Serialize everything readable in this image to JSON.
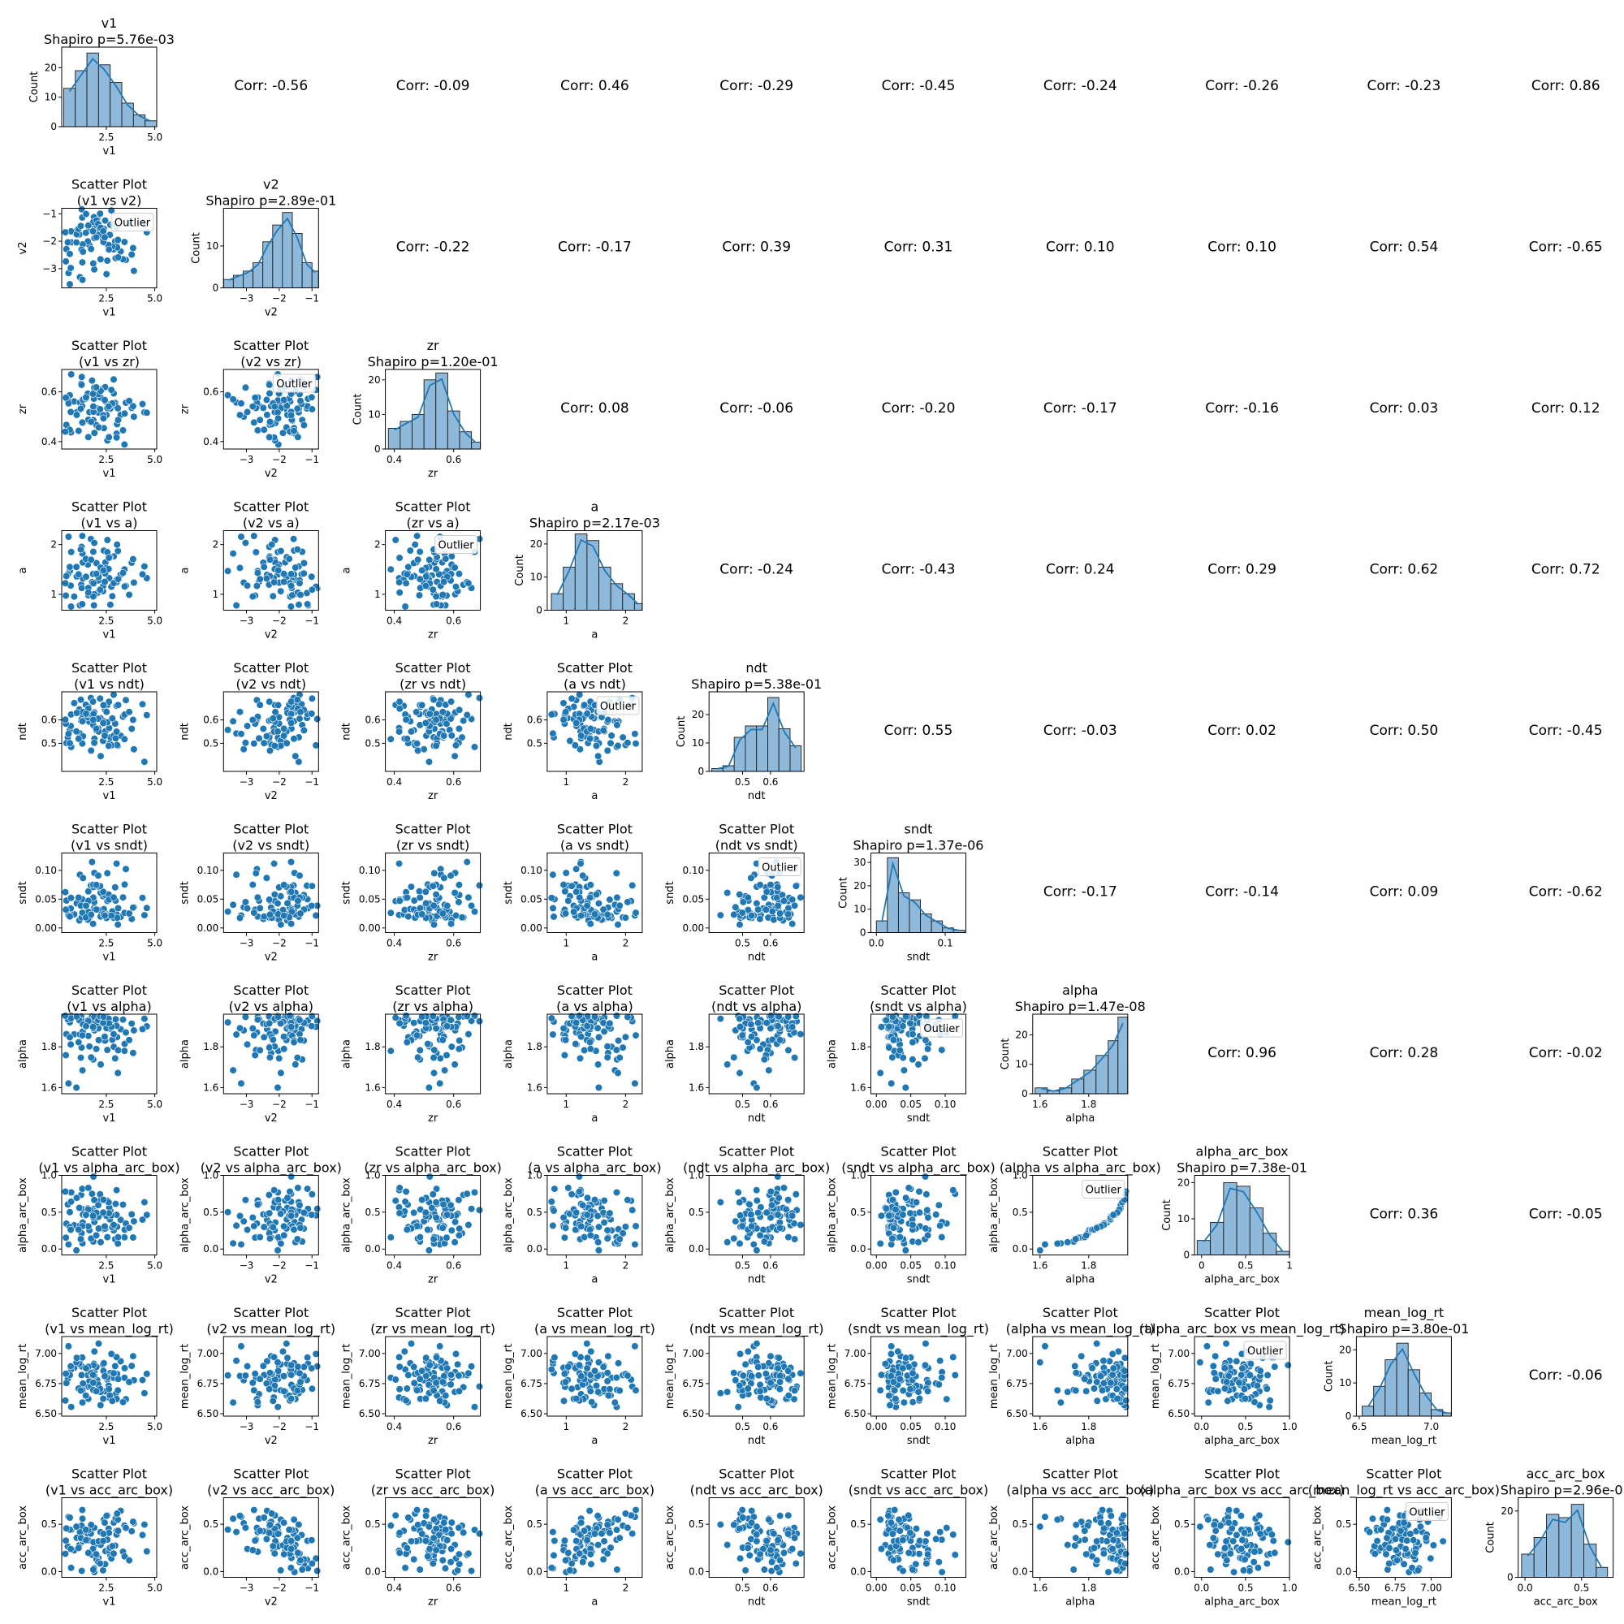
{
  "chart_data": {
    "type": "pair-grid",
    "variables": [
      "v1",
      "v2",
      "zr",
      "a",
      "ndt",
      "sndt",
      "alpha",
      "alpha_arc_box",
      "mean_log_rt",
      "acc_arc_box"
    ],
    "ranges": {
      "v1": [
        0.2,
        5.1
      ],
      "v2": [
        -3.7,
        -0.8
      ],
      "zr": [
        0.37,
        0.69
      ],
      "a": [
        0.68,
        2.28
      ],
      "ndt": [
        0.38,
        0.72
      ],
      "sndt": [
        -0.008,
        0.13
      ],
      "alpha": [
        1.57,
        1.96
      ],
      "alpha_arc_box": [
        -0.08,
        1.0
      ],
      "mean_log_rt": [
        6.48,
        7.14
      ],
      "acc_arc_box": [
        -0.06,
        0.78
      ]
    },
    "ticks": {
      "v1": {
        "values": [
          2.5,
          5.0
        ],
        "labels": [
          "2.5",
          "5.0"
        ]
      },
      "v2": {
        "values": [
          -3,
          -2,
          -1
        ],
        "labels": [
          "−3",
          "−2",
          "−1"
        ]
      },
      "zr": {
        "values": [
          0.4,
          0.6
        ],
        "labels": [
          "0.4",
          "0.6"
        ]
      },
      "a": {
        "values": [
          1,
          2
        ],
        "labels": [
          "1",
          "2"
        ]
      },
      "ndt": {
        "values": [
          0.5,
          0.6
        ],
        "labels": [
          "0.5",
          "0.6"
        ]
      },
      "sndt": {
        "values": [
          0.0,
          0.05,
          0.1
        ],
        "labels": [
          "0.00",
          "0.05",
          "0.10"
        ]
      },
      "alpha": {
        "values": [
          1.6,
          1.8
        ],
        "labels": [
          "1.6",
          "1.8"
        ]
      },
      "alpha_arc_box": {
        "values": [
          0.0,
          0.5,
          1.0
        ],
        "labels": [
          "0.0",
          "0.5",
          "1.0"
        ]
      },
      "mean_log_rt": {
        "values": [
          6.5,
          6.75,
          7.0
        ],
        "labels": [
          "6.50",
          "6.75",
          "7.00"
        ]
      },
      "acc_arc_box": {
        "values": [
          0.0,
          0.5
        ],
        "labels": [
          "0.0",
          "0.5"
        ]
      }
    },
    "hist_xticks": {
      "v1": {
        "values": [
          2.5,
          5.0
        ],
        "labels": [
          "2.5",
          "5.0"
        ]
      },
      "v2": {
        "values": [
          -3,
          -2,
          -1
        ],
        "labels": [
          "−3",
          "−2",
          "−1"
        ]
      },
      "zr": {
        "values": [
          0.4,
          0.6
        ],
        "labels": [
          "0.4",
          "0.6"
        ]
      },
      "a": {
        "values": [
          1,
          2
        ],
        "labels": [
          "1",
          "2"
        ]
      },
      "ndt": {
        "values": [
          0.5,
          0.6
        ],
        "labels": [
          "0.5",
          "0.6"
        ]
      },
      "sndt": {
        "values": [
          0.0,
          0.1
        ],
        "labels": [
          "0.0",
          "0.1"
        ]
      },
      "alpha": {
        "values": [
          1.6,
          1.8
        ],
        "labels": [
          "1.6",
          "1.8"
        ]
      },
      "alpha_arc_box": {
        "values": [
          0,
          0.5,
          1
        ],
        "labels": [
          "0",
          "0.5",
          "1"
        ]
      },
      "mean_log_rt": {
        "values": [
          6.5,
          7.0
        ],
        "labels": [
          "6.5",
          "7.0"
        ]
      },
      "acc_arc_box": {
        "values": [
          0.0,
          0.5
        ],
        "labels": [
          "0.0",
          "0.5"
        ]
      }
    },
    "histograms": {
      "v1": {
        "title": "v1",
        "shapiro": "Shapiro p=5.76e-03",
        "bins": [
          0.3,
          0.9,
          1.5,
          2.1,
          2.7,
          3.3,
          3.9,
          4.5,
          5.1
        ],
        "counts": [
          13,
          19,
          25,
          21,
          15,
          8,
          4,
          2
        ],
        "ymax": 27,
        "yticks": [
          0,
          10,
          20
        ]
      },
      "v2": {
        "title": "v2",
        "shapiro": "Shapiro p=2.89e-01",
        "bins": [
          -3.7,
          -3.4,
          -3.1,
          -2.8,
          -2.5,
          -2.2,
          -1.9,
          -1.6,
          -1.3,
          -1.0,
          -0.8
        ],
        "counts": [
          2,
          3,
          4,
          6,
          11,
          15,
          18,
          13,
          6,
          4
        ],
        "ymax": 19,
        "yticks": [
          0,
          10
        ]
      },
      "zr": {
        "title": "zr",
        "shapiro": "Shapiro p=1.20e-01",
        "bins": [
          0.38,
          0.42,
          0.46,
          0.5,
          0.54,
          0.58,
          0.62,
          0.66,
          0.69
        ],
        "counts": [
          6,
          8,
          10,
          20,
          22,
          11,
          5,
          2
        ],
        "ymax": 23,
        "yticks": [
          0,
          10,
          20
        ]
      },
      "a": {
        "title": "a",
        "shapiro": "Shapiro p=2.17e-03",
        "bins": [
          0.75,
          0.95,
          1.15,
          1.35,
          1.55,
          1.75,
          1.95,
          2.15,
          2.28
        ],
        "counts": [
          5,
          13,
          23,
          21,
          13,
          8,
          5,
          2
        ],
        "ymax": 24,
        "yticks": [
          0,
          10,
          20
        ]
      },
      "ndt": {
        "title": "ndt",
        "shapiro": "Shapiro p=5.38e-01",
        "bins": [
          0.39,
          0.43,
          0.47,
          0.51,
          0.55,
          0.59,
          0.63,
          0.67,
          0.71
        ],
        "counts": [
          1,
          2,
          12,
          16,
          16,
          26,
          15,
          9
        ],
        "ymax": 28,
        "yticks": [
          0,
          10,
          20
        ]
      },
      "sndt": {
        "title": "sndt",
        "shapiro": "Shapiro p=1.37e-06",
        "bins": [
          0.0,
          0.016,
          0.032,
          0.048,
          0.064,
          0.08,
          0.096,
          0.112,
          0.128
        ],
        "counts": [
          5,
          32,
          17,
          14,
          8,
          5,
          2,
          1
        ],
        "ymax": 34,
        "yticks": [
          0,
          10,
          20,
          30
        ]
      },
      "alpha": {
        "title": "alpha",
        "shapiro": "Shapiro p=1.47e-08",
        "bins": [
          1.58,
          1.63,
          1.68,
          1.73,
          1.78,
          1.83,
          1.88,
          1.92,
          1.96
        ],
        "counts": [
          2,
          1,
          2,
          5,
          8,
          13,
          18,
          26
        ],
        "ymax": 27,
        "yticks": [
          0,
          10,
          20
        ]
      },
      "alpha_arc_box": {
        "title": "alpha_arc_box",
        "shapiro": "Shapiro p=7.38e-01",
        "bins": [
          -0.05,
          0.1,
          0.25,
          0.4,
          0.55,
          0.7,
          0.85,
          1.0
        ],
        "counts": [
          4,
          9,
          20,
          19,
          13,
          6,
          1
        ],
        "ymax": 22,
        "yticks": [
          0,
          10,
          20
        ]
      },
      "mean_log_rt": {
        "title": "mean_log_rt",
        "shapiro": "Shapiro p=3.80e-01",
        "bins": [
          6.52,
          6.6,
          6.68,
          6.76,
          6.84,
          6.92,
          7.0,
          7.08,
          7.14
        ],
        "counts": [
          3,
          9,
          17,
          22,
          14,
          7,
          2,
          1
        ],
        "ymax": 24,
        "yticks": [
          0,
          10,
          20
        ]
      },
      "acc_arc_box": {
        "title": "acc_arc_box",
        "shapiro": "Shapiro p=2.96e-01",
        "bins": [
          -0.03,
          0.08,
          0.19,
          0.3,
          0.41,
          0.52,
          0.63,
          0.73
        ],
        "counts": [
          7,
          12,
          19,
          18,
          22,
          10,
          3
        ],
        "ymax": 24,
        "yticks": [
          0,
          20
        ]
      }
    },
    "correlations": {
      "0-1": "Corr: -0.56",
      "0-2": "Corr: -0.09",
      "0-3": "Corr: 0.46",
      "0-4": "Corr: -0.29",
      "0-5": "Corr: -0.45",
      "0-6": "Corr: -0.24",
      "0-7": "Corr: -0.26",
      "0-8": "Corr: -0.23",
      "0-9": "Corr: 0.86",
      "1-2": "Corr: -0.22",
      "1-3": "Corr: -0.17",
      "1-4": "Corr: 0.39",
      "1-5": "Corr: 0.31",
      "1-6": "Corr: 0.10",
      "1-7": "Corr: 0.10",
      "1-8": "Corr: 0.54",
      "1-9": "Corr: -0.65",
      "2-3": "Corr: 0.08",
      "2-4": "Corr: -0.06",
      "2-5": "Corr: -0.20",
      "2-6": "Corr: -0.17",
      "2-7": "Corr: -0.16",
      "2-8": "Corr: 0.03",
      "2-9": "Corr: 0.12",
      "3-4": "Corr: -0.24",
      "3-5": "Corr: -0.43",
      "3-6": "Corr: 0.24",
      "3-7": "Corr: 0.29",
      "3-8": "Corr: 0.62",
      "3-9": "Corr: 0.72",
      "4-5": "Corr: 0.55",
      "4-6": "Corr: -0.03",
      "4-7": "Corr: 0.02",
      "4-8": "Corr: 0.50",
      "4-9": "Corr: -0.45",
      "5-6": "Corr: -0.17",
      "5-7": "Corr: -0.14",
      "5-8": "Corr: 0.09",
      "5-9": "Corr: -0.62",
      "6-7": "Corr: 0.96",
      "6-8": "Corr: 0.28",
      "6-9": "Corr: -0.02",
      "7-8": "Corr: 0.36",
      "7-9": "Corr: -0.05",
      "8-9": "Corr: -0.06"
    },
    "scatter_title": "Scatter Plot",
    "outlier_label": "Outlier",
    "count_label": "Count",
    "sample_size": 90,
    "colors": {
      "points": "#1f77b4",
      "hist_fill": "#8fb9da",
      "kde": "#1f77b4",
      "edge": "#ffffff"
    }
  }
}
